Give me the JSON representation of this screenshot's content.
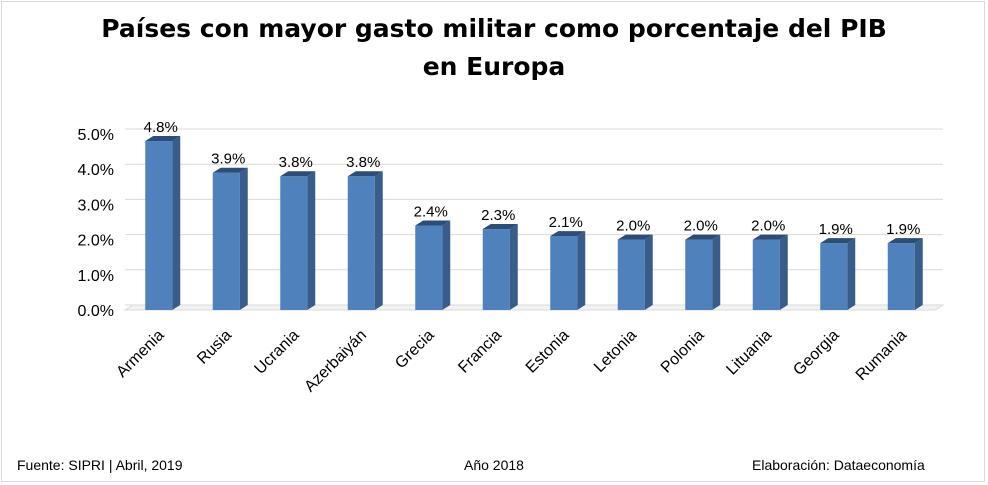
{
  "chart_data": {
    "type": "bar",
    "title_line1": "Países con mayor gasto militar como porcentaje del PIB",
    "title_line2": "en Europa",
    "categories": [
      "Armenia",
      "Rusia",
      "Ucrania",
      "Azerbaiyán",
      "Grecia",
      "Francia",
      "Estonia",
      "Letonia",
      "Polonia",
      "Lituania",
      "Georgia",
      "Rumania"
    ],
    "values": [
      4.8,
      3.9,
      3.8,
      3.8,
      2.4,
      2.3,
      2.1,
      2.0,
      2.0,
      2.0,
      1.9,
      1.9
    ],
    "value_labels": [
      "4.8%",
      "3.9%",
      "3.8%",
      "3.8%",
      "2.4%",
      "2.3%",
      "2.1%",
      "2.0%",
      "2.0%",
      "2.0%",
      "1.9%",
      "1.9%"
    ],
    "yticks": [
      "0.0%",
      "1.0%",
      "2.0%",
      "3.0%",
      "4.0%",
      "5.0%"
    ],
    "ylim": [
      0,
      5
    ],
    "grid": true,
    "bar_color": "#4f81bd",
    "bar_side_color": "#385d8a",
    "bar_top_color": "#2c4d75"
  },
  "footer": {
    "source": "Fuente: SIPRI | Abril, 2019",
    "year": "Año 2018",
    "credit": "Elaboración: Dataeconomía"
  }
}
